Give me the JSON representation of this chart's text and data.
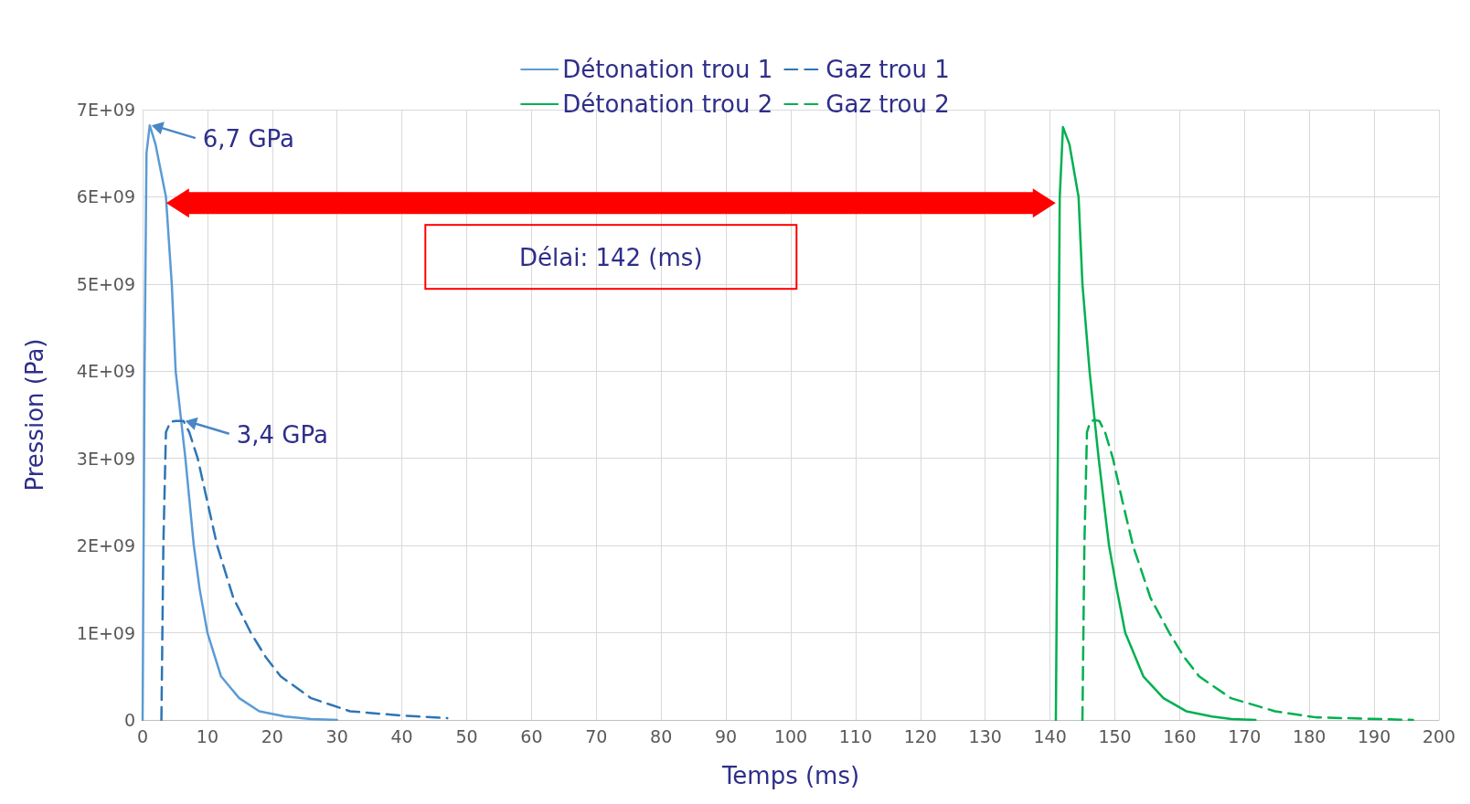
{
  "chart_data": {
    "type": "line",
    "xlabel": "Temps (ms)",
    "ylabel": "Pression (Pa)",
    "series": [
      {
        "name": "Détonation trou 1",
        "color": "#5b9bd5",
        "line_style": "solid",
        "x": [
          0,
          0.3,
          0.6,
          1.1,
          2,
          3.6,
          4.5,
          5.1,
          6.6,
          7.9,
          8.8,
          10,
          12.1,
          14.9,
          18,
          22,
          26,
          30
        ],
        "values": [
          0,
          4000000000,
          6500000000,
          6820000000,
          6600000000,
          6000000000,
          5000000000,
          4000000000,
          3000000000,
          2000000000,
          1500000000,
          1000000000,
          500000000,
          250000000,
          100000000,
          40000000,
          10000000,
          0
        ]
      },
      {
        "name": "Détonation trou 2",
        "color": "#00b050",
        "line_style": "solid",
        "x": [
          140.9,
          141.2,
          141.5,
          142,
          143,
          144.4,
          145,
          146.1,
          147.5,
          149.1,
          150.3,
          151.6,
          154.4,
          157.5,
          161,
          165,
          168,
          171.7
        ],
        "values": [
          0,
          3000000000,
          6000000000,
          6800000000,
          6600000000,
          6000000000,
          5000000000,
          4000000000,
          3000000000,
          2000000000,
          1500000000,
          1000000000,
          500000000,
          250000000,
          100000000,
          40000000,
          10000000,
          0
        ]
      },
      {
        "name": "Gaz trou 1",
        "color": "#2e75b6",
        "line_style": "dashed",
        "x": [
          2.9,
          3.2,
          3.6,
          4.3,
          5.1,
          6.3,
          7.2,
          8.5,
          10,
          11.5,
          14,
          16.7,
          19,
          21.3,
          26,
          32,
          40,
          47
        ],
        "values": [
          0,
          2000000000,
          3300000000,
          3420000000,
          3430000000,
          3430000000,
          3300000000,
          3000000000,
          2500000000,
          2000000000,
          1400000000,
          1000000000,
          720000000,
          500000000,
          250000000,
          100000000,
          50000000,
          20000000
        ]
      },
      {
        "name": "Gaz trou 2",
        "color": "#00b050",
        "line_style": "dashed",
        "x": [
          145,
          145.3,
          145.7,
          146.2,
          146.8,
          147.6,
          148.5,
          149.7,
          151.2,
          152.8,
          155.5,
          158.4,
          160.7,
          163,
          167.9,
          174.7,
          181,
          196
        ],
        "values": [
          0,
          2000000000,
          3300000000,
          3420000000,
          3440000000,
          3430000000,
          3300000000,
          3000000000,
          2500000000,
          2000000000,
          1400000000,
          1000000000,
          720000000,
          500000000,
          250000000,
          100000000,
          30000000,
          0
        ]
      }
    ],
    "xlim": [
      0,
      200
    ],
    "xticks": [
      0,
      10,
      20,
      30,
      40,
      50,
      60,
      70,
      80,
      90,
      100,
      110,
      120,
      130,
      140,
      150,
      160,
      170,
      180,
      190,
      200
    ],
    "ylim": [
      0,
      7000000000
    ],
    "yticks": [
      0,
      {
        "value": 1000000000,
        "label": "1E+09"
      },
      {
        "value": 2000000000,
        "label": "2E+09"
      },
      {
        "value": 3000000000,
        "label": "3E+09"
      },
      {
        "value": 4000000000,
        "label": "4E+09"
      },
      {
        "value": 5000000000,
        "label": "5E+09"
      },
      {
        "value": 6000000000,
        "label": "6E+09"
      },
      {
        "value": 7000000000,
        "label": "7E+09"
      }
    ],
    "grid": true,
    "legend": "top",
    "marker": "none",
    "annotations": [
      {
        "text": "6,7 GPa",
        "x": 1.1,
        "y": 6820000000
      },
      {
        "text": "3,4 GPa",
        "x": 6.3,
        "y": 3430000000
      },
      "Délai: 142 (ms)"
    ]
  }
}
